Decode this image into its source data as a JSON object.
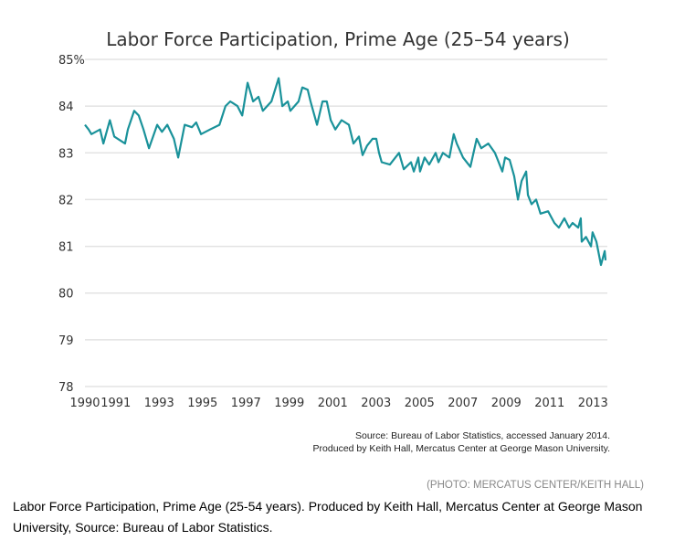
{
  "chart_data": {
    "type": "line",
    "title": "Labor Force Participation, Prime Age (25–54 years)",
    "xlabel": "",
    "ylabel": "",
    "y_unit": "%",
    "xlim": [
      1990,
      2014
    ],
    "ylim": [
      78,
      85
    ],
    "y_ticks": [
      "78",
      "79",
      "80",
      "81",
      "82",
      "83",
      "84",
      "85"
    ],
    "x_ticks": [
      "1990",
      "1991",
      "1993",
      "1995",
      "1997",
      "1999",
      "2001",
      "2003",
      "2005",
      "2007",
      "2009",
      "2011",
      "2013"
    ],
    "grid": "horizontal",
    "line_color": "#1a929a",
    "series": [
      {
        "x": [
          1990.0,
          1990.17,
          1990.3,
          1990.7,
          1990.85,
          1991.15,
          1991.35,
          1991.85,
          1991.98,
          1992.27,
          1992.48,
          1992.7,
          1992.95,
          1993.33,
          1993.55,
          1993.8,
          1994.1,
          1994.3,
          1994.6,
          1994.93,
          1995.13,
          1995.35,
          1995.77,
          1996.2,
          1996.48,
          1996.7,
          1997.03,
          1997.25,
          1997.5,
          1997.75,
          1998.0,
          1998.2,
          1998.6,
          1998.93,
          1999.1,
          1999.35,
          1999.47,
          1999.85,
          2000.02,
          2000.27,
          2000.4,
          2000.7,
          2000.95,
          2001.15,
          2001.33,
          2001.54,
          2001.83,
          2002.17,
          2002.38,
          2002.63,
          2002.8,
          2003.0,
          2003.26,
          2003.43,
          2003.56,
          2003.68,
          2004.06,
          2004.48,
          2004.7,
          2005.03,
          2005.16,
          2005.37,
          2005.45,
          2005.66,
          2005.87,
          2006.17,
          2006.3,
          2006.5,
          2006.8,
          2007.0,
          2007.14,
          2007.43,
          2007.77,
          2008.06,
          2008.27,
          2008.6,
          2008.9,
          2009.03,
          2009.24,
          2009.37,
          2009.58,
          2009.79,
          2009.96,
          2010.13,
          2010.34,
          2010.42,
          2010.59,
          2010.8,
          2011.0,
          2011.35,
          2011.64,
          2011.85,
          2012.1,
          2012.32,
          2012.48,
          2012.74,
          2012.86,
          2012.9,
          2013.1,
          2013.33,
          2013.4,
          2013.58,
          2013.79,
          2013.96,
          2014.0
        ],
        "y": [
          83.6,
          83.5,
          83.4,
          83.5,
          83.2,
          83.7,
          83.35,
          83.2,
          83.5,
          83.9,
          83.8,
          83.5,
          83.1,
          83.6,
          83.45,
          83.6,
          83.3,
          82.9,
          83.6,
          83.55,
          83.65,
          83.4,
          83.5,
          83.6,
          84.0,
          84.1,
          84.0,
          83.8,
          84.5,
          84.1,
          84.2,
          83.9,
          84.1,
          84.6,
          84.0,
          84.1,
          83.9,
          84.1,
          84.4,
          84.35,
          84.1,
          83.6,
          84.1,
          84.1,
          83.7,
          83.5,
          83.7,
          83.6,
          83.2,
          83.35,
          82.95,
          83.15,
          83.3,
          83.3,
          83.0,
          82.8,
          82.75,
          83.0,
          82.65,
          82.8,
          82.6,
          82.9,
          82.6,
          82.9,
          82.75,
          83.0,
          82.8,
          83.0,
          82.9,
          83.4,
          83.2,
          82.9,
          82.7,
          83.3,
          83.1,
          83.2,
          83.0,
          82.85,
          82.6,
          82.9,
          82.85,
          82.5,
          82.0,
          82.4,
          82.6,
          82.1,
          81.9,
          82.0,
          81.7,
          81.75,
          81.5,
          81.4,
          81.6,
          81.4,
          81.5,
          81.4,
          81.6,
          81.1,
          81.2,
          81.0,
          81.3,
          81.1,
          80.6,
          80.9,
          80.7
        ]
      }
    ],
    "annotations": [
      "Source: Bureau of Labor Statistics, accessed January 2014.",
      "Produced by Keith Hall, Mercatus Center at George Mason University."
    ]
  },
  "photo_credit": "(PHOTO: MERCATUS CENTER/KEITH HALL)",
  "caption": "Labor Force Participation, Prime Age (25-54 years). Produced by Keith Hall, Mercatus Center at George Mason University, Source: Bureau of Labor Statistics."
}
